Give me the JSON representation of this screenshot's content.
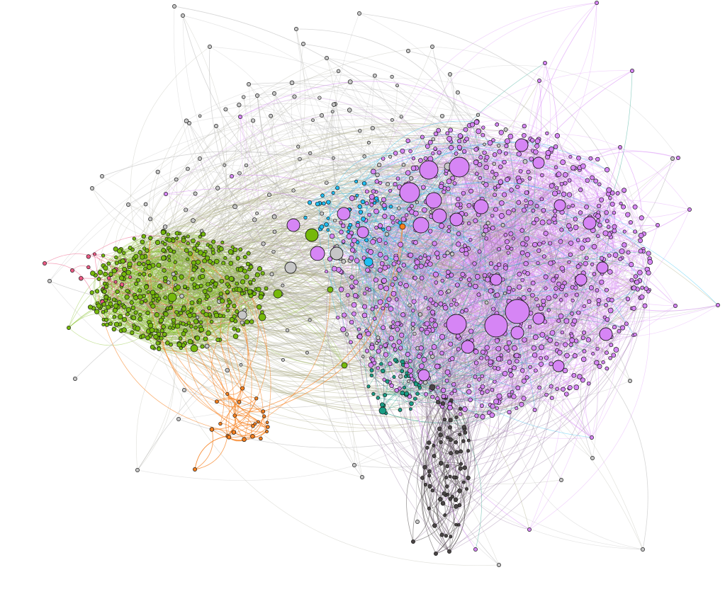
{
  "diagram": {
    "type": "network-graph",
    "background": "#ffffff",
    "communities": [
      {
        "id": "purple",
        "color": "#d685f5"
      },
      {
        "id": "green",
        "color": "#75b80a"
      },
      {
        "id": "orange",
        "color": "#f7801e"
      },
      {
        "id": "cyan",
        "color": "#1fbef2"
      },
      {
        "id": "teal",
        "color": "#1a9e86"
      },
      {
        "id": "dark",
        "color": "#4a4545"
      },
      {
        "id": "pink",
        "color": "#ec5a84"
      },
      {
        "id": "gray",
        "color": "#c6c6c6"
      }
    ],
    "node_outline": "#1a1a1a"
  }
}
